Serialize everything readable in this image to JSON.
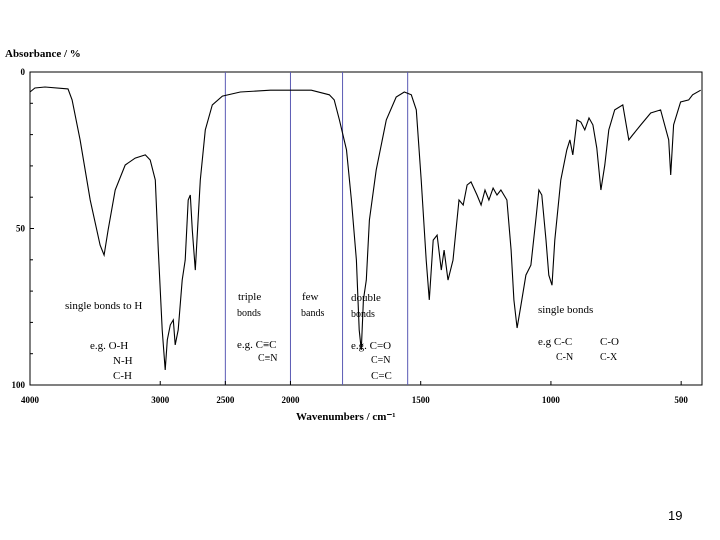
{
  "chart_data": {
    "type": "line",
    "ylabel": "Absorbance / %",
    "xlabel": "Wavenumbers / cm⁻¹",
    "page_number": "19",
    "xlim": [
      4000,
      420
    ],
    "x_scale_break": 2000,
    "x_scale_factor": 2,
    "ylim": [
      0,
      100
    ],
    "y_inverted": true,
    "xticks": [
      4000,
      3000,
      2500,
      2000,
      1500,
      1000,
      500
    ],
    "yticks": [
      0,
      50,
      100
    ],
    "yminorticks": [
      10,
      20,
      30,
      40,
      60,
      70,
      80,
      90
    ],
    "region_lines": [
      2500,
      2000,
      1800,
      1550
    ],
    "region_color": "#5a5ab4",
    "color": "#000000",
    "x": [
      4000,
      3962,
      3885,
      3708,
      3677,
      3615,
      3538,
      3462,
      3431,
      3400,
      3346,
      3269,
      3192,
      3115,
      3077,
      3038,
      3015,
      2985,
      2962,
      2946,
      2923,
      2900,
      2885,
      2862,
      2831,
      2808,
      2785,
      2769,
      2754,
      2731,
      2692,
      2654,
      2600,
      2523,
      2385,
      2154,
      1920,
      1851,
      1832,
      1812,
      1785,
      1766,
      1747,
      1736,
      1728,
      1720,
      1709,
      1697,
      1671,
      1632,
      1594,
      1563,
      1536,
      1517,
      1498,
      1479,
      1467,
      1452,
      1437,
      1421,
      1410,
      1395,
      1376,
      1353,
      1337,
      1322,
      1307,
      1284,
      1268,
      1253,
      1238,
      1222,
      1207,
      1192,
      1169,
      1153,
      1142,
      1130,
      1115,
      1096,
      1077,
      1058,
      1046,
      1035,
      1019,
      1008,
      996,
      985,
      962,
      939,
      927,
      916,
      900,
      885,
      870,
      854,
      839,
      824,
      808,
      793,
      778,
      755,
      724,
      701,
      686,
      655,
      617,
      579,
      548,
      540,
      529,
      502,
      471,
      456,
      425
    ],
    "values": [
      6.4,
      5.1,
      4.8,
      5.4,
      8.9,
      21.7,
      40.9,
      55.3,
      58.5,
      50.5,
      37.7,
      29.7,
      27.5,
      26.5,
      28.1,
      34.5,
      56.9,
      82.4,
      95.2,
      85.6,
      80.8,
      79.2,
      87.2,
      82.4,
      66.5,
      60.1,
      40.9,
      39.3,
      50.5,
      63.3,
      34.5,
      18.5,
      10.5,
      7.7,
      6.4,
      5.8,
      5.8,
      7.3,
      8.9,
      15.3,
      24.9,
      40.9,
      60.1,
      82.4,
      88.8,
      72.8,
      66.5,
      47.3,
      31.3,
      15.3,
      8.0,
      6.4,
      7.3,
      12.1,
      34.5,
      60.1,
      72.8,
      53.7,
      52.1,
      63.3,
      56.9,
      66.5,
      60.1,
      40.9,
      42.5,
      36.1,
      35.1,
      39.3,
      42.5,
      37.7,
      40.9,
      37.1,
      39.3,
      37.7,
      40.9,
      56.9,
      72.8,
      81.8,
      74.4,
      64.9,
      61.7,
      47.3,
      37.7,
      39.3,
      53.7,
      64.9,
      68.1,
      53.7,
      34.5,
      24.9,
      21.7,
      26.5,
      15.3,
      16.0,
      18.5,
      14.7,
      16.9,
      24.3,
      37.7,
      29.7,
      18.5,
      12.1,
      10.5,
      21.7,
      20.1,
      16.9,
      13.1,
      12.1,
      21.7,
      32.9,
      16.9,
      9.6,
      8.9,
      7.3,
      5.8
    ],
    "annotations": [
      "single bonds to H",
      "e.g. O-H",
      "N-H",
      "C-H",
      "triple",
      "bonds",
      "e.g. C≡C",
      "C≡N",
      "few",
      "bands",
      "double",
      "bonds",
      "e.g. C=O",
      "C=N",
      "C=C",
      "single bonds",
      "e.g C-C",
      "C-O",
      "C-N",
      "C-X"
    ]
  }
}
